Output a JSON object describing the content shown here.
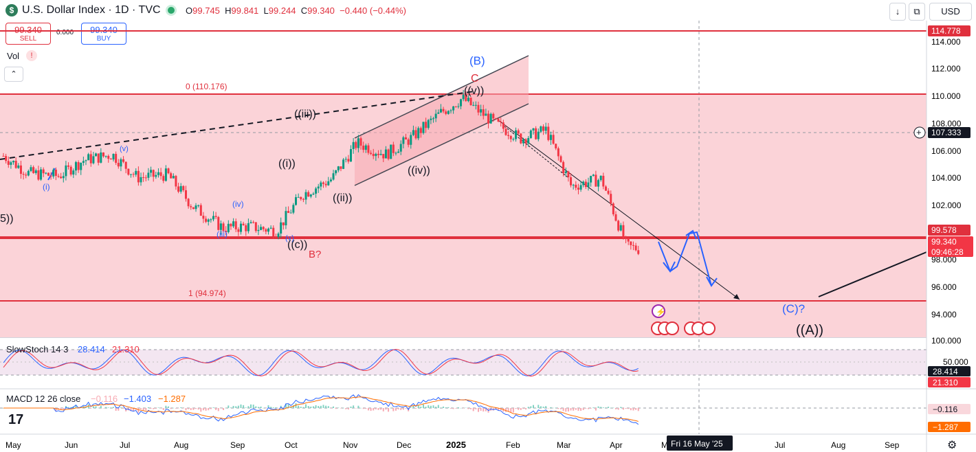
{
  "header": {
    "logo_glyph": "$",
    "title": "U.S. Dollar Index · 1D · TVC",
    "ohlc": {
      "o_label": "O",
      "o": "99.745",
      "h_label": "H",
      "h": "99.841",
      "l_label": "L",
      "l": "99.244",
      "c_label": "C",
      "c": "99.340",
      "change": "−0.440 (−0.44%)"
    },
    "down_arrow_icon": "↓",
    "restore_icon": "⧉",
    "currency": "USD"
  },
  "trade": {
    "sell_value": "99.340",
    "sell_label": "SELL",
    "spread": "0.000",
    "buy_value": "99.340",
    "buy_label": "BUY"
  },
  "volume": {
    "label": "Vol",
    "warning_glyph": "!",
    "collapse_glyph": "⌃"
  },
  "price_axis": {
    "ticks": [
      "114.000",
      "112.000",
      "110.000",
      "108.000",
      "106.000",
      "104.000",
      "102.000",
      "100.000",
      "98.000",
      "96.000",
      "94.000"
    ],
    "badges": {
      "top": "114.778",
      "crosshair": "107.333",
      "line_level": "99.578",
      "last_price": "99.340",
      "countdown": "09:46:28"
    }
  },
  "time_axis": {
    "labels": [
      "May",
      "Jun",
      "Jul",
      "Aug",
      "Sep",
      "Oct",
      "Nov",
      "Dec",
      "2025",
      "Feb",
      "Mar",
      "Apr",
      "M",
      "Jul",
      "Aug",
      "Sep"
    ],
    "crosshair_date": "Fri 16 May '25"
  },
  "fib": {
    "top_label": "0 (110.176)",
    "bottom_label": "1 (94.974)"
  },
  "wave_labels": {
    "B_major": "(B)",
    "C_red": "C",
    "v_wave": "((v))",
    "iii_wave": "((iii))",
    "i_wave": "((i))",
    "ii_wave": "((ii))",
    "iv_wave": "((iv))",
    "c_wave": "((c))",
    "b_q": "B?",
    "five_partial": "5))",
    "small_i": "(i)",
    "small_iii": "(iii)",
    "small_iv": "(iv)",
    "small_v": "(v)",
    "small_v_top": "(v)",
    "C_target": "(C)?",
    "A_major": "((A))"
  },
  "stoch": {
    "label": "SlowStoch 14 3",
    "k": "28.414",
    "d": "21.310",
    "ticks": [
      "100.000",
      "50.000"
    ],
    "badge_k": "28.414",
    "badge_d": "21.310"
  },
  "macd": {
    "label": "MACD 12 26 close",
    "hist": "−0.116",
    "macd": "−1.403",
    "signal": "−1.287",
    "badge_hist": "−0.116",
    "badge_signal": "−1.287"
  },
  "footer": {
    "tv_logo": "17",
    "settings_icon": "⚙"
  },
  "colors": {
    "zone": "#fbd3d8",
    "red_line": "#e0303d",
    "blue": "#2962ff",
    "up": "#089981",
    "down": "#f23645",
    "stoch_k": "#2962ff",
    "stoch_d": "#f23645",
    "macd": "#2962ff",
    "signal": "#ff6d00"
  },
  "chart_data": {
    "type": "candlestick",
    "title": "U.S. Dollar Index · 1D · TVC",
    "ylim": [
      93.2,
      115.2
    ],
    "x_range": [
      "2024-05-01",
      "2025-09-30"
    ],
    "series": [
      {
        "name": "close",
        "x": [
          "2024-05-01",
          "2024-05-15",
          "2024-06-01",
          "2024-06-15",
          "2024-07-01",
          "2024-07-15",
          "2024-08-01",
          "2024-08-15",
          "2024-09-01",
          "2024-09-15",
          "2024-10-01",
          "2024-10-15",
          "2024-11-01",
          "2024-11-15",
          "2024-12-01",
          "2024-12-15",
          "2025-01-01",
          "2025-01-13",
          "2025-02-01",
          "2025-02-15",
          "2025-03-01",
          "2025-03-15",
          "2025-04-01",
          "2025-04-15",
          "2025-04-22"
        ],
        "values": [
          105.8,
          104.6,
          104.4,
          105.5,
          105.9,
          104.3,
          104.5,
          102.3,
          100.8,
          100.9,
          100.6,
          103.1,
          104.2,
          106.7,
          105.9,
          107.0,
          108.8,
          109.8,
          108.0,
          107.0,
          107.6,
          103.7,
          104.2,
          99.5,
          99.34
        ]
      }
    ],
    "levels": {
      "top_line": 114.778,
      "zone_top": 110.176,
      "current": 99.578,
      "zone_bottom": 94.974
    }
  }
}
